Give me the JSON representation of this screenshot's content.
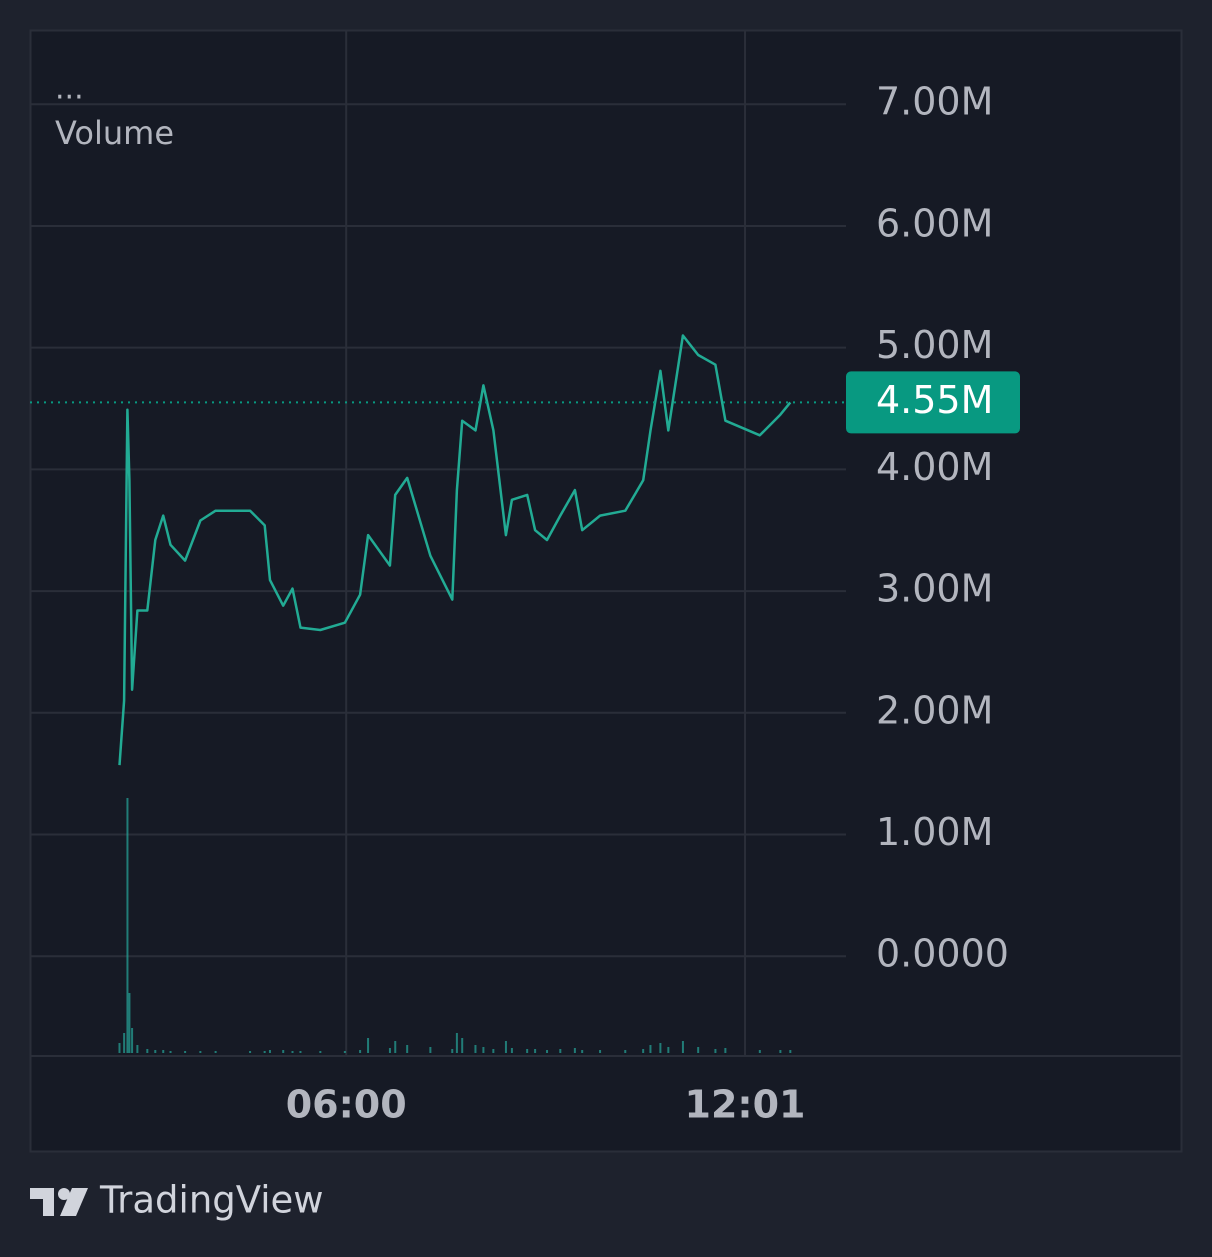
{
  "chart_data": {
    "type": "line",
    "legend_title": "...",
    "x": [
      2.58,
      2.65,
      2.7,
      2.73,
      2.77,
      2.85,
      3.0,
      3.12,
      3.24,
      3.35,
      3.57,
      3.8,
      4.03,
      4.55,
      4.77,
      4.85,
      5.05,
      5.19,
      5.31,
      5.61,
      5.98,
      6.21,
      6.33,
      6.66,
      6.74,
      6.92,
      7.27,
      7.6,
      7.67,
      7.75,
      7.95,
      8.07,
      8.22,
      8.41,
      8.5,
      8.73,
      8.85,
      9.03,
      9.23,
      9.45,
      9.56,
      9.83,
      10.21,
      10.48,
      10.59,
      10.74,
      10.86,
      11.08,
      11.31,
      11.57,
      11.72,
      12.24,
      12.55,
      12.7
    ],
    "series": [
      {
        "color": "#22ab94",
        "values": [
          1570000,
          2100000,
          4490000,
          3910000,
          2190000,
          2840000,
          2840000,
          3420000,
          3620000,
          3380000,
          3250000,
          3580000,
          3660000,
          3660000,
          3540000,
          3090000,
          2880000,
          3020000,
          2700000,
          2680000,
          2740000,
          2970000,
          3460000,
          3210000,
          3790000,
          3930000,
          3290000,
          2930000,
          3830000,
          4400000,
          4320000,
          4690000,
          4320000,
          3460000,
          3750000,
          3790000,
          3500000,
          3420000,
          3620000,
          3830000,
          3500000,
          3620000,
          3660000,
          3910000,
          4320000,
          4810000,
          4320000,
          5100000,
          4940000,
          4860000,
          4400000,
          4280000,
          4450000,
          4550000
        ]
      }
    ],
    "volume": {
      "name": "Volume",
      "color": "#26a69a",
      "ylim": [
        0,
        300
      ],
      "values": [
        10,
        20,
        255,
        60,
        25,
        8,
        4,
        3,
        3,
        2,
        2,
        2,
        2,
        2,
        2,
        3,
        3,
        2,
        2,
        2,
        2,
        3,
        15,
        5,
        12,
        8,
        6,
        4,
        20,
        15,
        8,
        6,
        4,
        12,
        5,
        4,
        4,
        3,
        4,
        5,
        3,
        3,
        3,
        4,
        8,
        10,
        6,
        12,
        6,
        4,
        5,
        3,
        3,
        3
      ]
    },
    "price_line": {
      "value": 4550000,
      "label": "4.55M",
      "color": "#089981"
    },
    "xlim": [
      1.23,
      13.54
    ],
    "xticks": [
      {
        "value": 6,
        "label": "06:00"
      },
      {
        "value": 12.0167,
        "label": "12:01"
      }
    ],
    "ylim": [
      -820000,
      7610000
    ],
    "yticks": [
      {
        "value": 0,
        "label": "0.0000"
      },
      {
        "value": 1000000,
        "label": "1.00M"
      },
      {
        "value": 2000000,
        "label": "2.00M"
      },
      {
        "value": 3000000,
        "label": "3.00M"
      },
      {
        "value": 4000000,
        "label": "4.00M"
      },
      {
        "value": 5000000,
        "label": "5.00M"
      },
      {
        "value": 6000000,
        "label": "6.00M"
      },
      {
        "value": 7000000,
        "label": "7.00M"
      }
    ],
    "grid": true,
    "branding": "TradingView"
  }
}
